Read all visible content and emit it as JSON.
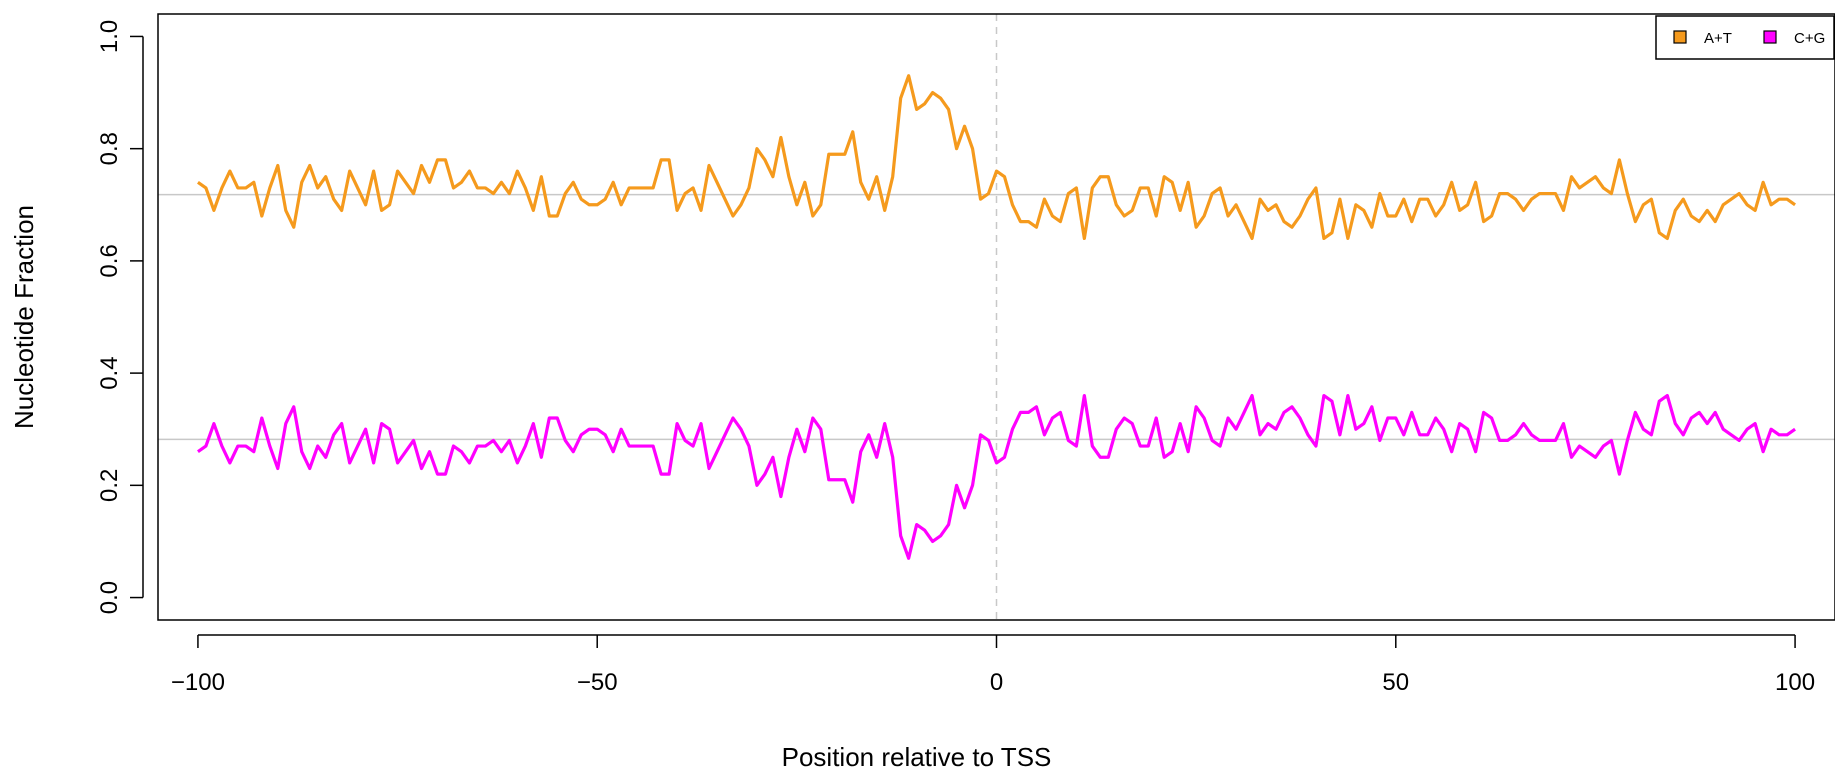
{
  "chart_data": {
    "type": "line",
    "title": "",
    "xlabel": "Position relative to TSS",
    "ylabel": "Nucleotide Fraction",
    "xlim": [
      -105,
      105
    ],
    "ylim": [
      -0.04,
      1.04
    ],
    "x_ticks": [
      -100,
      -50,
      0,
      50,
      100
    ],
    "x_tick_labels": [
      "−100",
      "−50",
      "0",
      "50",
      "100"
    ],
    "y_ticks": [
      0.0,
      0.2,
      0.4,
      0.6,
      0.8,
      1.0
    ],
    "y_tick_labels": [
      "0.0",
      "0.2",
      "0.4",
      "0.6",
      "0.8",
      "1.0"
    ],
    "grid": false,
    "legend_position": "top-right",
    "reference_lines": {
      "vertical_x": 0,
      "horizontal_y": [
        0.718,
        0.282
      ]
    },
    "x_start": -100,
    "x_step": 1,
    "series": [
      {
        "name": "A+T",
        "color": "#F59A1D",
        "values": [
          0.74,
          0.73,
          0.69,
          0.73,
          0.76,
          0.73,
          0.73,
          0.74,
          0.68,
          0.73,
          0.77,
          0.69,
          0.66,
          0.74,
          0.77,
          0.73,
          0.75,
          0.71,
          0.69,
          0.76,
          0.73,
          0.7,
          0.76,
          0.69,
          0.7,
          0.76,
          0.74,
          0.72,
          0.77,
          0.74,
          0.78,
          0.78,
          0.73,
          0.74,
          0.76,
          0.73,
          0.73,
          0.72,
          0.74,
          0.72,
          0.76,
          0.73,
          0.69,
          0.75,
          0.68,
          0.68,
          0.72,
          0.74,
          0.71,
          0.7,
          0.7,
          0.71,
          0.74,
          0.7,
          0.73,
          0.73,
          0.73,
          0.73,
          0.78,
          0.78,
          0.69,
          0.72,
          0.73,
          0.69,
          0.77,
          0.74,
          0.71,
          0.68,
          0.7,
          0.73,
          0.8,
          0.78,
          0.75,
          0.82,
          0.75,
          0.7,
          0.74,
          0.68,
          0.7,
          0.79,
          0.79,
          0.79,
          0.83,
          0.74,
          0.71,
          0.75,
          0.69,
          0.75,
          0.89,
          0.93,
          0.87,
          0.88,
          0.9,
          0.89,
          0.87,
          0.8,
          0.84,
          0.8,
          0.71,
          0.72,
          0.76,
          0.75,
          0.7,
          0.67,
          0.67,
          0.66,
          0.71,
          0.68,
          0.67,
          0.72,
          0.73,
          0.64,
          0.73,
          0.75,
          0.75,
          0.7,
          0.68,
          0.69,
          0.73,
          0.73,
          0.68,
          0.75,
          0.74,
          0.69,
          0.74,
          0.66,
          0.68,
          0.72,
          0.73,
          0.68,
          0.7,
          0.67,
          0.64,
          0.71,
          0.69,
          0.7,
          0.67,
          0.66,
          0.68,
          0.71,
          0.73,
          0.64,
          0.65,
          0.71,
          0.64,
          0.7,
          0.69,
          0.66,
          0.72,
          0.68,
          0.68,
          0.71,
          0.67,
          0.71,
          0.71,
          0.68,
          0.7,
          0.74,
          0.69,
          0.7,
          0.74,
          0.67,
          0.68,
          0.72,
          0.72,
          0.71,
          0.69,
          0.71,
          0.72,
          0.72,
          0.72,
          0.69,
          0.75,
          0.73,
          0.74,
          0.75,
          0.73,
          0.72,
          0.78,
          0.72,
          0.67,
          0.7,
          0.71,
          0.65,
          0.64,
          0.69,
          0.71,
          0.68,
          0.67,
          0.69,
          0.67,
          0.7,
          0.71,
          0.72,
          0.7,
          0.69,
          0.74,
          0.7,
          0.71,
          0.71,
          0.7
        ]
      },
      {
        "name": "C+G",
        "color": "#FF00FF",
        "values": [
          0.26,
          0.27,
          0.31,
          0.27,
          0.24,
          0.27,
          0.27,
          0.26,
          0.32,
          0.27,
          0.23,
          0.31,
          0.34,
          0.26,
          0.23,
          0.27,
          0.25,
          0.29,
          0.31,
          0.24,
          0.27,
          0.3,
          0.24,
          0.31,
          0.3,
          0.24,
          0.26,
          0.28,
          0.23,
          0.26,
          0.22,
          0.22,
          0.27,
          0.26,
          0.24,
          0.27,
          0.27,
          0.28,
          0.26,
          0.28,
          0.24,
          0.27,
          0.31,
          0.25,
          0.32,
          0.32,
          0.28,
          0.26,
          0.29,
          0.3,
          0.3,
          0.29,
          0.26,
          0.3,
          0.27,
          0.27,
          0.27,
          0.27,
          0.22,
          0.22,
          0.31,
          0.28,
          0.27,
          0.31,
          0.23,
          0.26,
          0.29,
          0.32,
          0.3,
          0.27,
          0.2,
          0.22,
          0.25,
          0.18,
          0.25,
          0.3,
          0.26,
          0.32,
          0.3,
          0.21,
          0.21,
          0.21,
          0.17,
          0.26,
          0.29,
          0.25,
          0.31,
          0.25,
          0.11,
          0.07,
          0.13,
          0.12,
          0.1,
          0.11,
          0.13,
          0.2,
          0.16,
          0.2,
          0.29,
          0.28,
          0.24,
          0.25,
          0.3,
          0.33,
          0.33,
          0.34,
          0.29,
          0.32,
          0.33,
          0.28,
          0.27,
          0.36,
          0.27,
          0.25,
          0.25,
          0.3,
          0.32,
          0.31,
          0.27,
          0.27,
          0.32,
          0.25,
          0.26,
          0.31,
          0.26,
          0.34,
          0.32,
          0.28,
          0.27,
          0.32,
          0.3,
          0.33,
          0.36,
          0.29,
          0.31,
          0.3,
          0.33,
          0.34,
          0.32,
          0.29,
          0.27,
          0.36,
          0.35,
          0.29,
          0.36,
          0.3,
          0.31,
          0.34,
          0.28,
          0.32,
          0.32,
          0.29,
          0.33,
          0.29,
          0.29,
          0.32,
          0.3,
          0.26,
          0.31,
          0.3,
          0.26,
          0.33,
          0.32,
          0.28,
          0.28,
          0.29,
          0.31,
          0.29,
          0.28,
          0.28,
          0.28,
          0.31,
          0.25,
          0.27,
          0.26,
          0.25,
          0.27,
          0.28,
          0.22,
          0.28,
          0.33,
          0.3,
          0.29,
          0.35,
          0.36,
          0.31,
          0.29,
          0.32,
          0.33,
          0.31,
          0.33,
          0.3,
          0.29,
          0.28,
          0.3,
          0.31,
          0.26,
          0.3,
          0.29,
          0.29,
          0.3
        ]
      }
    ]
  }
}
